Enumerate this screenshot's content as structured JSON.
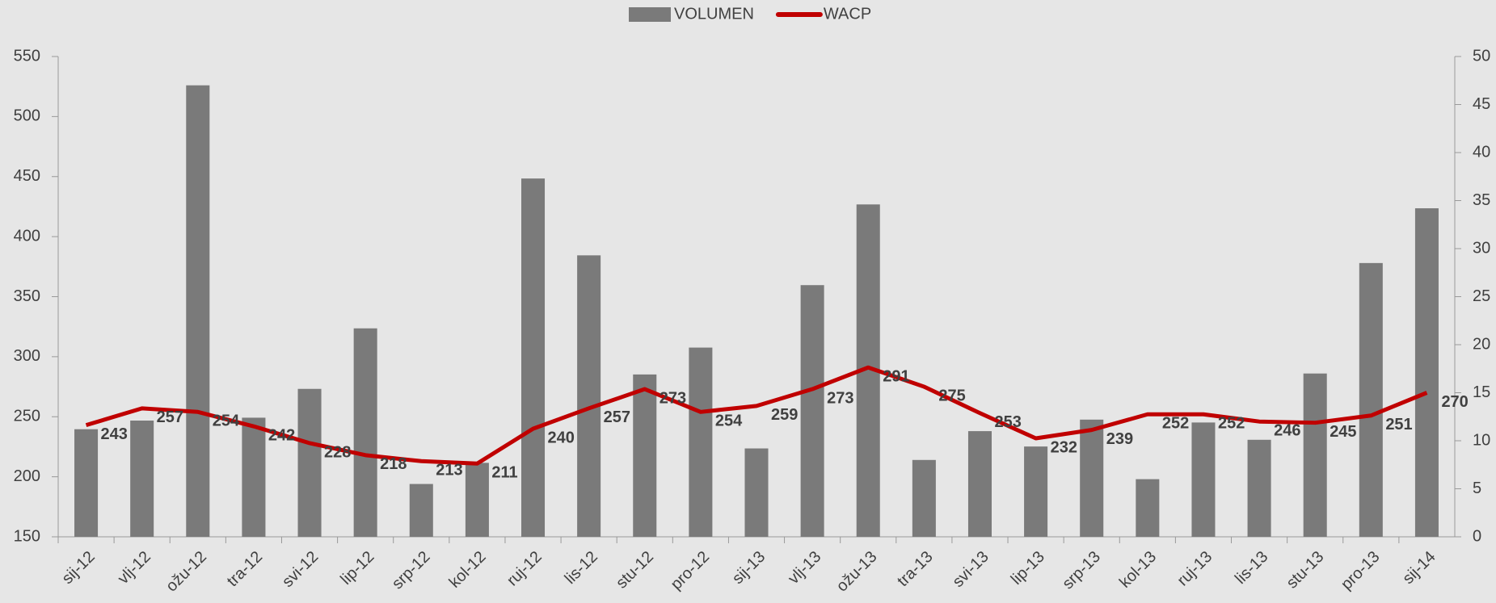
{
  "chart_data": {
    "type": "bar",
    "categories": [
      "sij-12",
      "vlj-12",
      "ožu-12",
      "tra-12",
      "svi-12",
      "lip-12",
      "srp-12",
      "kol-12",
      "ruj-12",
      "lis-12",
      "stu-12",
      "pro-12",
      "sij-13",
      "vlj-13",
      "ožu-13",
      "tra-13",
      "svi-13",
      "lip-13",
      "srp-13",
      "kol-13",
      "ruj-13",
      "lis-13",
      "stu-13",
      "pro-13",
      "sij-14"
    ],
    "series": [
      {
        "name": "VOLUMEN",
        "color": "#7a7a7a",
        "axis": "y2",
        "type": "bar",
        "values": [
          11.2,
          12.1,
          47.0,
          12.4,
          15.4,
          21.7,
          5.5,
          7.7,
          37.3,
          29.3,
          16.9,
          19.7,
          9.2,
          26.2,
          34.6,
          8.0,
          11.0,
          9.4,
          12.2,
          6.0,
          11.9,
          10.1,
          17.0,
          28.5,
          34.2
        ]
      },
      {
        "name": "WACP",
        "color": "#c00000",
        "type": "line",
        "values": [
          243,
          257,
          254,
          242,
          228,
          218,
          213,
          211,
          240,
          257,
          273,
          254,
          259,
          273,
          291,
          275,
          253,
          232,
          239,
          252,
          252,
          246,
          245,
          251,
          270
        ]
      }
    ],
    "ylim": [
      150,
      550
    ],
    "yticks": [
      150,
      200,
      250,
      300,
      350,
      400,
      450,
      500,
      550
    ],
    "y2lim": [
      0,
      50
    ],
    "y2ticks": [
      0,
      5,
      10,
      15,
      20,
      25,
      30,
      35,
      40,
      45,
      50
    ],
    "legend": "top"
  }
}
